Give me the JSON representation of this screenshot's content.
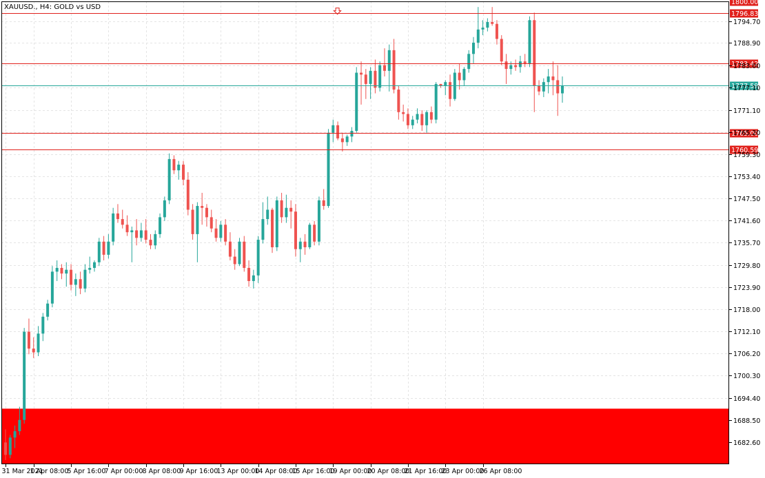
{
  "header": {
    "symbol": "XAUUSD.",
    "timeframe": "H4",
    "description": "GOLD vs USD",
    "title": "XAUUSD., H4:  GOLD vs USD"
  },
  "colors": {
    "bull": "#26a69a",
    "bear": "#ef5350",
    "level_line": "#e0201b",
    "zone_fill": "#ff0000",
    "current_price": "#26a69a",
    "grid": "#e4e4e4"
  },
  "chart_data": {
    "type": "candlestick",
    "title": "XAUUSD., H4:  GOLD vs USD",
    "ylim": [
      1676.7,
      1800.0
    ],
    "y_ticks": [
      "1794.70",
      "1788.90",
      "1783.00",
      "1777.10",
      "1771.10",
      "1765.20",
      "1759.30",
      "1753.40",
      "1747.50",
      "1741.60",
      "1735.70",
      "1729.80",
      "1723.90",
      "1718.00",
      "1712.10",
      "1706.20",
      "1700.30",
      "1694.40",
      "1688.50",
      "1682.60"
    ],
    "x_labels": [
      {
        "index": 0,
        "label": "31 Mar 2021"
      },
      {
        "index": 6,
        "label": "1 Apr 08:00"
      },
      {
        "index": 14,
        "label": "5 Apr 16:00"
      },
      {
        "index": 22,
        "label": "7 Apr 00:00"
      },
      {
        "index": 30,
        "label": "8 Apr 08:00"
      },
      {
        "index": 38,
        "label": "9 Apr 16:00"
      },
      {
        "index": 46,
        "label": "13 Apr 00:00"
      },
      {
        "index": 54,
        "label": "14 Apr 08:00"
      },
      {
        "index": 62,
        "label": "15 Apr 16:00"
      },
      {
        "index": 70,
        "label": "19 Apr 00:00"
      },
      {
        "index": 78,
        "label": "20 Apr 08:00"
      },
      {
        "index": 86,
        "label": "21 Apr 16:00"
      },
      {
        "index": 94,
        "label": "23 Apr 00:00"
      },
      {
        "index": 102,
        "label": "26 Apr 08:00"
      }
    ],
    "candles": [
      {
        "o": 1682.5,
        "h": 1686.0,
        "l": 1677.8,
        "c": 1679.2
      },
      {
        "o": 1679.2,
        "h": 1684.5,
        "l": 1678.3,
        "c": 1683.8
      },
      {
        "o": 1683.8,
        "h": 1687.0,
        "l": 1681.0,
        "c": 1685.5
      },
      {
        "o": 1685.5,
        "h": 1692.0,
        "l": 1684.5,
        "c": 1688.5
      },
      {
        "o": 1688.5,
        "h": 1713.0,
        "l": 1687.5,
        "c": 1712.0
      },
      {
        "o": 1712.0,
        "h": 1715.5,
        "l": 1706.0,
        "c": 1707.5
      },
      {
        "o": 1707.5,
        "h": 1710.5,
        "l": 1705.0,
        "c": 1706.5
      },
      {
        "o": 1706.5,
        "h": 1713.5,
        "l": 1705.5,
        "c": 1711.5
      },
      {
        "o": 1711.5,
        "h": 1717.0,
        "l": 1709.5,
        "c": 1716.0
      },
      {
        "o": 1716.0,
        "h": 1720.5,
        "l": 1715.0,
        "c": 1719.5
      },
      {
        "o": 1719.5,
        "h": 1729.5,
        "l": 1718.5,
        "c": 1728.0
      },
      {
        "o": 1728.0,
        "h": 1731.0,
        "l": 1725.5,
        "c": 1729.0
      },
      {
        "o": 1729.0,
        "h": 1730.0,
        "l": 1726.0,
        "c": 1727.5
      },
      {
        "o": 1727.5,
        "h": 1730.5,
        "l": 1724.0,
        "c": 1728.5
      },
      {
        "o": 1728.5,
        "h": 1730.0,
        "l": 1723.0,
        "c": 1724.5
      },
      {
        "o": 1724.5,
        "h": 1727.5,
        "l": 1721.5,
        "c": 1726.0
      },
      {
        "o": 1726.0,
        "h": 1728.0,
        "l": 1722.0,
        "c": 1723.5
      },
      {
        "o": 1723.5,
        "h": 1730.0,
        "l": 1722.5,
        "c": 1728.5
      },
      {
        "o": 1728.5,
        "h": 1732.0,
        "l": 1727.5,
        "c": 1729.0
      },
      {
        "o": 1729.0,
        "h": 1731.0,
        "l": 1728.0,
        "c": 1730.5
      },
      {
        "o": 1730.5,
        "h": 1737.0,
        "l": 1729.5,
        "c": 1736.0
      },
      {
        "o": 1736.0,
        "h": 1737.5,
        "l": 1731.0,
        "c": 1732.5
      },
      {
        "o": 1732.5,
        "h": 1738.0,
        "l": 1731.5,
        "c": 1736.0
      },
      {
        "o": 1736.0,
        "h": 1745.0,
        "l": 1735.0,
        "c": 1743.5
      },
      {
        "o": 1743.5,
        "h": 1746.0,
        "l": 1741.0,
        "c": 1742.0
      },
      {
        "o": 1742.0,
        "h": 1744.5,
        "l": 1739.5,
        "c": 1740.5
      },
      {
        "o": 1740.5,
        "h": 1743.0,
        "l": 1737.5,
        "c": 1738.5
      },
      {
        "o": 1738.5,
        "h": 1740.0,
        "l": 1730.5,
        "c": 1739.0
      },
      {
        "o": 1739.0,
        "h": 1742.0,
        "l": 1735.0,
        "c": 1737.0
      },
      {
        "o": 1737.0,
        "h": 1741.0,
        "l": 1736.0,
        "c": 1739.0
      },
      {
        "o": 1739.0,
        "h": 1742.0,
        "l": 1735.5,
        "c": 1736.5
      },
      {
        "o": 1736.5,
        "h": 1738.0,
        "l": 1734.0,
        "c": 1735.0
      },
      {
        "o": 1735.0,
        "h": 1739.0,
        "l": 1734.0,
        "c": 1738.0
      },
      {
        "o": 1738.0,
        "h": 1743.5,
        "l": 1737.0,
        "c": 1742.5
      },
      {
        "o": 1742.5,
        "h": 1748.0,
        "l": 1741.5,
        "c": 1747.0
      },
      {
        "o": 1747.0,
        "h": 1759.5,
        "l": 1746.0,
        "c": 1758.0
      },
      {
        "o": 1758.0,
        "h": 1759.0,
        "l": 1754.0,
        "c": 1755.0
      },
      {
        "o": 1755.0,
        "h": 1757.5,
        "l": 1752.5,
        "c": 1756.5
      },
      {
        "o": 1756.5,
        "h": 1757.5,
        "l": 1751.0,
        "c": 1752.5
      },
      {
        "o": 1752.5,
        "h": 1754.5,
        "l": 1743.0,
        "c": 1744.5
      },
      {
        "o": 1744.5,
        "h": 1746.0,
        "l": 1736.5,
        "c": 1738.0
      },
      {
        "o": 1738.0,
        "h": 1746.5,
        "l": 1730.5,
        "c": 1745.5
      },
      {
        "o": 1745.5,
        "h": 1749.0,
        "l": 1740.5,
        "c": 1745.0
      },
      {
        "o": 1745.0,
        "h": 1746.0,
        "l": 1740.0,
        "c": 1742.5
      },
      {
        "o": 1742.5,
        "h": 1744.5,
        "l": 1738.5,
        "c": 1739.5
      },
      {
        "o": 1739.5,
        "h": 1742.0,
        "l": 1736.0,
        "c": 1737.0
      },
      {
        "o": 1737.0,
        "h": 1741.5,
        "l": 1736.0,
        "c": 1740.5
      },
      {
        "o": 1740.5,
        "h": 1742.0,
        "l": 1735.0,
        "c": 1736.0
      },
      {
        "o": 1736.0,
        "h": 1738.5,
        "l": 1731.0,
        "c": 1732.0
      },
      {
        "o": 1732.0,
        "h": 1734.0,
        "l": 1728.5,
        "c": 1730.0
      },
      {
        "o": 1730.0,
        "h": 1737.0,
        "l": 1729.5,
        "c": 1736.0
      },
      {
        "o": 1736.0,
        "h": 1737.5,
        "l": 1728.0,
        "c": 1729.0
      },
      {
        "o": 1729.0,
        "h": 1731.0,
        "l": 1724.0,
        "c": 1725.5
      },
      {
        "o": 1725.5,
        "h": 1728.5,
        "l": 1723.5,
        "c": 1727.0
      },
      {
        "o": 1727.0,
        "h": 1737.5,
        "l": 1725.0,
        "c": 1736.5
      },
      {
        "o": 1736.5,
        "h": 1746.5,
        "l": 1735.5,
        "c": 1742.0
      },
      {
        "o": 1742.0,
        "h": 1748.0,
        "l": 1740.5,
        "c": 1744.5
      },
      {
        "o": 1744.5,
        "h": 1745.0,
        "l": 1733.0,
        "c": 1734.5
      },
      {
        "o": 1734.5,
        "h": 1748.0,
        "l": 1733.5,
        "c": 1747.0
      },
      {
        "o": 1747.0,
        "h": 1749.0,
        "l": 1741.0,
        "c": 1742.5
      },
      {
        "o": 1742.5,
        "h": 1748.5,
        "l": 1741.0,
        "c": 1745.0
      },
      {
        "o": 1745.0,
        "h": 1747.0,
        "l": 1739.5,
        "c": 1744.0
      },
      {
        "o": 1744.0,
        "h": 1746.0,
        "l": 1732.0,
        "c": 1734.0
      },
      {
        "o": 1734.0,
        "h": 1737.0,
        "l": 1730.5,
        "c": 1736.0
      },
      {
        "o": 1736.0,
        "h": 1738.0,
        "l": 1732.5,
        "c": 1734.5
      },
      {
        "o": 1734.5,
        "h": 1741.0,
        "l": 1734.0,
        "c": 1740.5
      },
      {
        "o": 1740.5,
        "h": 1741.5,
        "l": 1735.0,
        "c": 1736.0
      },
      {
        "o": 1736.0,
        "h": 1748.0,
        "l": 1735.0,
        "c": 1747.0
      },
      {
        "o": 1747.0,
        "h": 1750.0,
        "l": 1744.5,
        "c": 1745.5
      },
      {
        "o": 1745.5,
        "h": 1766.0,
        "l": 1745.0,
        "c": 1765.0
      },
      {
        "o": 1765.0,
        "h": 1768.5,
        "l": 1762.5,
        "c": 1767.0
      },
      {
        "o": 1767.0,
        "h": 1768.0,
        "l": 1763.0,
        "c": 1763.5
      },
      {
        "o": 1763.5,
        "h": 1765.0,
        "l": 1760.0,
        "c": 1762.5
      },
      {
        "o": 1762.5,
        "h": 1764.5,
        "l": 1761.5,
        "c": 1764.0
      },
      {
        "o": 1764.0,
        "h": 1766.5,
        "l": 1762.5,
        "c": 1765.5
      },
      {
        "o": 1765.5,
        "h": 1782.5,
        "l": 1765.0,
        "c": 1781.0
      },
      {
        "o": 1781.0,
        "h": 1784.0,
        "l": 1772.5,
        "c": 1780.5
      },
      {
        "o": 1780.5,
        "h": 1782.0,
        "l": 1774.0,
        "c": 1778.0
      },
      {
        "o": 1778.0,
        "h": 1782.5,
        "l": 1774.0,
        "c": 1781.5
      },
      {
        "o": 1781.5,
        "h": 1784.5,
        "l": 1775.5,
        "c": 1777.0
      },
      {
        "o": 1777.0,
        "h": 1784.0,
        "l": 1776.0,
        "c": 1783.0
      },
      {
        "o": 1783.0,
        "h": 1787.5,
        "l": 1780.0,
        "c": 1781.5
      },
      {
        "o": 1781.5,
        "h": 1788.5,
        "l": 1776.0,
        "c": 1787.0
      },
      {
        "o": 1787.0,
        "h": 1790.0,
        "l": 1775.5,
        "c": 1776.5
      },
      {
        "o": 1776.5,
        "h": 1777.5,
        "l": 1768.5,
        "c": 1770.5
      },
      {
        "o": 1770.5,
        "h": 1772.5,
        "l": 1768.0,
        "c": 1770.0
      },
      {
        "o": 1770.0,
        "h": 1771.5,
        "l": 1766.0,
        "c": 1767.0
      },
      {
        "o": 1767.0,
        "h": 1769.5,
        "l": 1766.0,
        "c": 1768.5
      },
      {
        "o": 1768.5,
        "h": 1771.5,
        "l": 1767.5,
        "c": 1770.0
      },
      {
        "o": 1770.0,
        "h": 1771.0,
        "l": 1765.5,
        "c": 1767.0
      },
      {
        "o": 1767.0,
        "h": 1771.0,
        "l": 1765.0,
        "c": 1770.5
      },
      {
        "o": 1770.5,
        "h": 1772.0,
        "l": 1767.5,
        "c": 1768.5
      },
      {
        "o": 1768.5,
        "h": 1778.5,
        "l": 1767.5,
        "c": 1778.0
      },
      {
        "o": 1778.0,
        "h": 1778.0,
        "l": 1777.0,
        "c": 1777.5
      },
      {
        "o": 1777.5,
        "h": 1779.0,
        "l": 1775.0,
        "c": 1778.5
      },
      {
        "o": 1778.5,
        "h": 1780.5,
        "l": 1772.0,
        "c": 1774.0
      },
      {
        "o": 1774.0,
        "h": 1782.0,
        "l": 1773.5,
        "c": 1781.0
      },
      {
        "o": 1781.0,
        "h": 1783.5,
        "l": 1776.5,
        "c": 1779.0
      },
      {
        "o": 1779.0,
        "h": 1782.5,
        "l": 1777.5,
        "c": 1782.0
      },
      {
        "o": 1782.0,
        "h": 1787.0,
        "l": 1781.0,
        "c": 1786.0
      },
      {
        "o": 1786.0,
        "h": 1790.5,
        "l": 1783.5,
        "c": 1789.0
      },
      {
        "o": 1789.0,
        "h": 1798.5,
        "l": 1787.5,
        "c": 1792.5
      },
      {
        "o": 1792.5,
        "h": 1795.0,
        "l": 1791.0,
        "c": 1793.0
      },
      {
        "o": 1793.0,
        "h": 1795.5,
        "l": 1792.0,
        "c": 1794.5
      },
      {
        "o": 1794.5,
        "h": 1798.5,
        "l": 1793.5,
        "c": 1794.0
      },
      {
        "o": 1794.0,
        "h": 1795.0,
        "l": 1788.5,
        "c": 1790.0
      },
      {
        "o": 1790.0,
        "h": 1791.0,
        "l": 1783.0,
        "c": 1784.0
      },
      {
        "o": 1784.0,
        "h": 1786.0,
        "l": 1778.0,
        "c": 1782.0
      },
      {
        "o": 1782.0,
        "h": 1784.0,
        "l": 1780.5,
        "c": 1783.0
      },
      {
        "o": 1783.0,
        "h": 1784.5,
        "l": 1781.5,
        "c": 1782.5
      },
      {
        "o": 1782.5,
        "h": 1785.5,
        "l": 1781.0,
        "c": 1784.0
      },
      {
        "o": 1784.0,
        "h": 1786.0,
        "l": 1782.5,
        "c": 1783.5
      },
      {
        "o": 1783.5,
        "h": 1796.0,
        "l": 1782.5,
        "c": 1795.0
      },
      {
        "o": 1795.0,
        "h": 1797.0,
        "l": 1770.5,
        "c": 1777.5
      },
      {
        "o": 1777.5,
        "h": 1779.0,
        "l": 1775.0,
        "c": 1776.0
      },
      {
        "o": 1776.0,
        "h": 1779.5,
        "l": 1774.5,
        "c": 1778.5
      },
      {
        "o": 1778.5,
        "h": 1782.0,
        "l": 1775.5,
        "c": 1780.0
      },
      {
        "o": 1780.0,
        "h": 1784.0,
        "l": 1775.0,
        "c": 1779.0
      },
      {
        "o": 1779.0,
        "h": 1783.0,
        "l": 1769.5,
        "c": 1775.5
      },
      {
        "o": 1775.5,
        "h": 1780.0,
        "l": 1773.0,
        "c": 1777.59
      }
    ],
    "levels": [
      {
        "value": 1800.0,
        "label": "1800.00"
      },
      {
        "value": 1796.83,
        "label": "1796.83"
      },
      {
        "value": 1783.42,
        "label": "1783.42"
      },
      {
        "value": 1765.0,
        "label": "1765.00"
      },
      {
        "value": 1760.59,
        "label": "1760.59"
      }
    ],
    "current_price": {
      "value": 1777.59,
      "label": "1777.59"
    },
    "zone": {
      "top": 1691.5,
      "bottom": 1676.7
    },
    "marker": {
      "value": 1797.5,
      "index": 71,
      "type": "down-arrow"
    }
  }
}
